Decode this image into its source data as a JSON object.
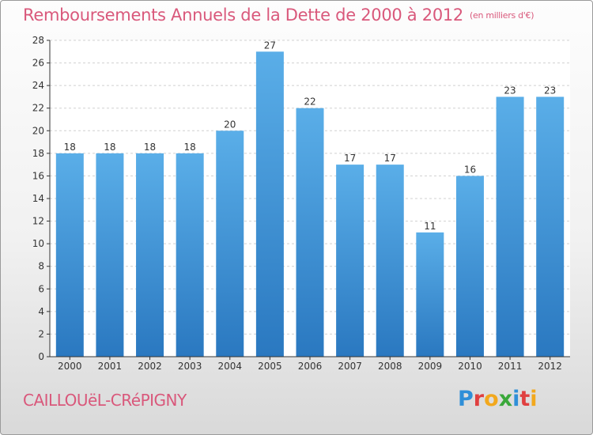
{
  "title": "Remboursements Annuels de la Dette de 2000 à 2012",
  "unit": "(en milliers d'€)",
  "commune": "CAILLOUëL-CRéPIGNY",
  "logo": {
    "letters": [
      "P",
      "r",
      "o",
      "x",
      "i",
      "t",
      "i"
    ],
    "colors": [
      "#2f8fd8",
      "#e04040",
      "#f2a81d",
      "#3aa83a",
      "#2f8fd8",
      "#e04040",
      "#f2a81d"
    ]
  },
  "colors": {
    "bar_top": "#5aaee8",
    "bar_bottom": "#2a78c0",
    "text": "#d9587b",
    "axis": "#333333",
    "grid": "#d0d0d0"
  },
  "chart_data": {
    "type": "bar",
    "categories": [
      "2000",
      "2001",
      "2002",
      "2003",
      "2004",
      "2005",
      "2006",
      "2007",
      "2008",
      "2009",
      "2010",
      "2011",
      "2012"
    ],
    "values": [
      18,
      18,
      18,
      18,
      20,
      27,
      22,
      17,
      17,
      11,
      16,
      23,
      23
    ],
    "ylim": [
      0,
      28
    ],
    "yticks": [
      0,
      2,
      4,
      6,
      8,
      10,
      12,
      14,
      16,
      18,
      20,
      22,
      24,
      26,
      28
    ],
    "grid": true,
    "data_labels": true
  }
}
